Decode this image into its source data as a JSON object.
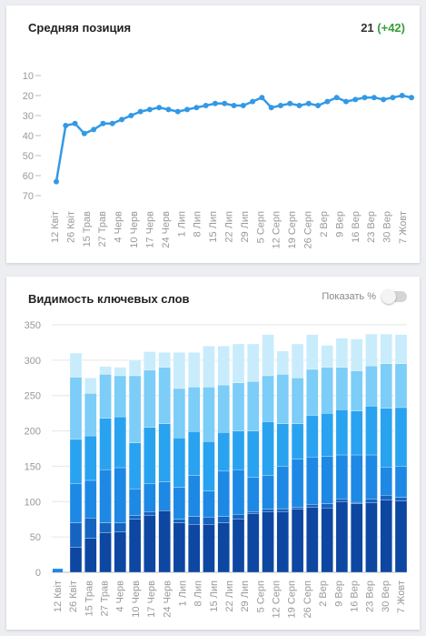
{
  "position_widget": {
    "title": "Средняя позиция",
    "current_value": "21",
    "delta": "(+42)"
  },
  "visibility_widget": {
    "title": "Видимость ключевых слов",
    "toggle_label": "Показать %",
    "toggle_on": false
  },
  "colors": {
    "line": "#3399e6",
    "stack": [
      "#0d47a1",
      "#1565c0",
      "#1e88e5",
      "#29a3f0",
      "#7ccdf7",
      "#c9ecfc"
    ]
  },
  "chart_data": [
    {
      "type": "line",
      "title": "Средняя позиция",
      "y_reversed": true,
      "ylim": [
        0,
        75
      ],
      "yticks": [
        10,
        20,
        30,
        40,
        50,
        60,
        70
      ],
      "grid": false,
      "x_tick_labels": [
        "12 Квіт",
        "26 Квіт",
        "15 Трав",
        "27 Трав",
        "4 Черв",
        "10 Черв",
        "17 Черв",
        "24 Черв",
        "1 Лип",
        "8 Лип",
        "15 Лип",
        "22 Лип",
        "29 Лип",
        "5 Серп",
        "12 Серп",
        "19 Серп",
        "26 Серп",
        "2 Вер",
        "9 Вер",
        "16 Вер",
        "23 Вер",
        "30 Вер",
        "7 Жовт"
      ],
      "series": [
        {
          "values": [
            63,
            35,
            34,
            39,
            37,
            34,
            34,
            32,
            30,
            28,
            27,
            26,
            27,
            28,
            27,
            26,
            25,
            24,
            24,
            25,
            25,
            23,
            21,
            26,
            25,
            24,
            25,
            24,
            25,
            23,
            21,
            23,
            22,
            21,
            21,
            22,
            21,
            20,
            21
          ]
        }
      ]
    },
    {
      "type": "bar",
      "stacked": true,
      "title": "Видимость ключевых слов",
      "ylim": [
        0,
        350
      ],
      "yticks": [
        0,
        50,
        100,
        150,
        200,
        250,
        300,
        350
      ],
      "grid": true,
      "x_tick_labels": [
        "12 Квіт",
        "26 Квіт",
        "15 Трав",
        "27 Трав",
        "4 Черв",
        "10 Черв",
        "17 Черв",
        "24 Черв",
        "1 Лип",
        "8 Лип",
        "15 Лип",
        "22 Лип",
        "29 Лип",
        "5 Серп",
        "12 Серп",
        "19 Серп",
        "26 Серп",
        "2 Вер",
        "9 Вер",
        "16 Вер",
        "23 Вер",
        "30 Вер",
        "7 Жовт"
      ],
      "series_totals": [
        [
          35,
          48,
          56,
          57,
          75,
          80,
          87,
          70,
          68,
          68,
          70,
          75,
          83,
          86,
          86,
          89,
          92,
          91,
          100,
          97,
          98,
          102,
          101
        ],
        [
          70,
          77,
          70,
          70,
          80,
          86,
          87,
          75,
          79,
          78,
          79,
          82,
          86,
          89,
          90,
          92,
          96,
          97,
          104,
          99,
          104,
          109,
          106
        ],
        [
          125,
          130,
          145,
          148,
          118,
          125,
          128,
          120,
          137,
          115,
          143,
          145,
          134,
          137,
          150,
          160,
          163,
          164,
          166,
          166,
          166,
          149,
          150
        ],
        [
          188,
          193,
          218,
          220,
          183,
          205,
          210,
          190,
          199,
          185,
          198,
          200,
          200,
          213,
          210,
          210,
          222,
          225,
          230,
          228,
          235,
          232,
          233
        ],
        [
          276,
          253,
          280,
          278,
          278,
          286,
          290,
          260,
          262,
          262,
          265,
          268,
          270,
          278,
          280,
          275,
          287,
          290,
          290,
          285,
          292,
          295,
          295
        ],
        [
          310,
          275,
          291,
          290,
          300,
          312,
          311,
          311,
          311,
          320,
          320,
          323,
          323,
          336,
          313,
          323,
          336,
          321,
          331,
          330,
          337,
          337,
          336
        ]
      ],
      "first_point_value": 5
    }
  ]
}
